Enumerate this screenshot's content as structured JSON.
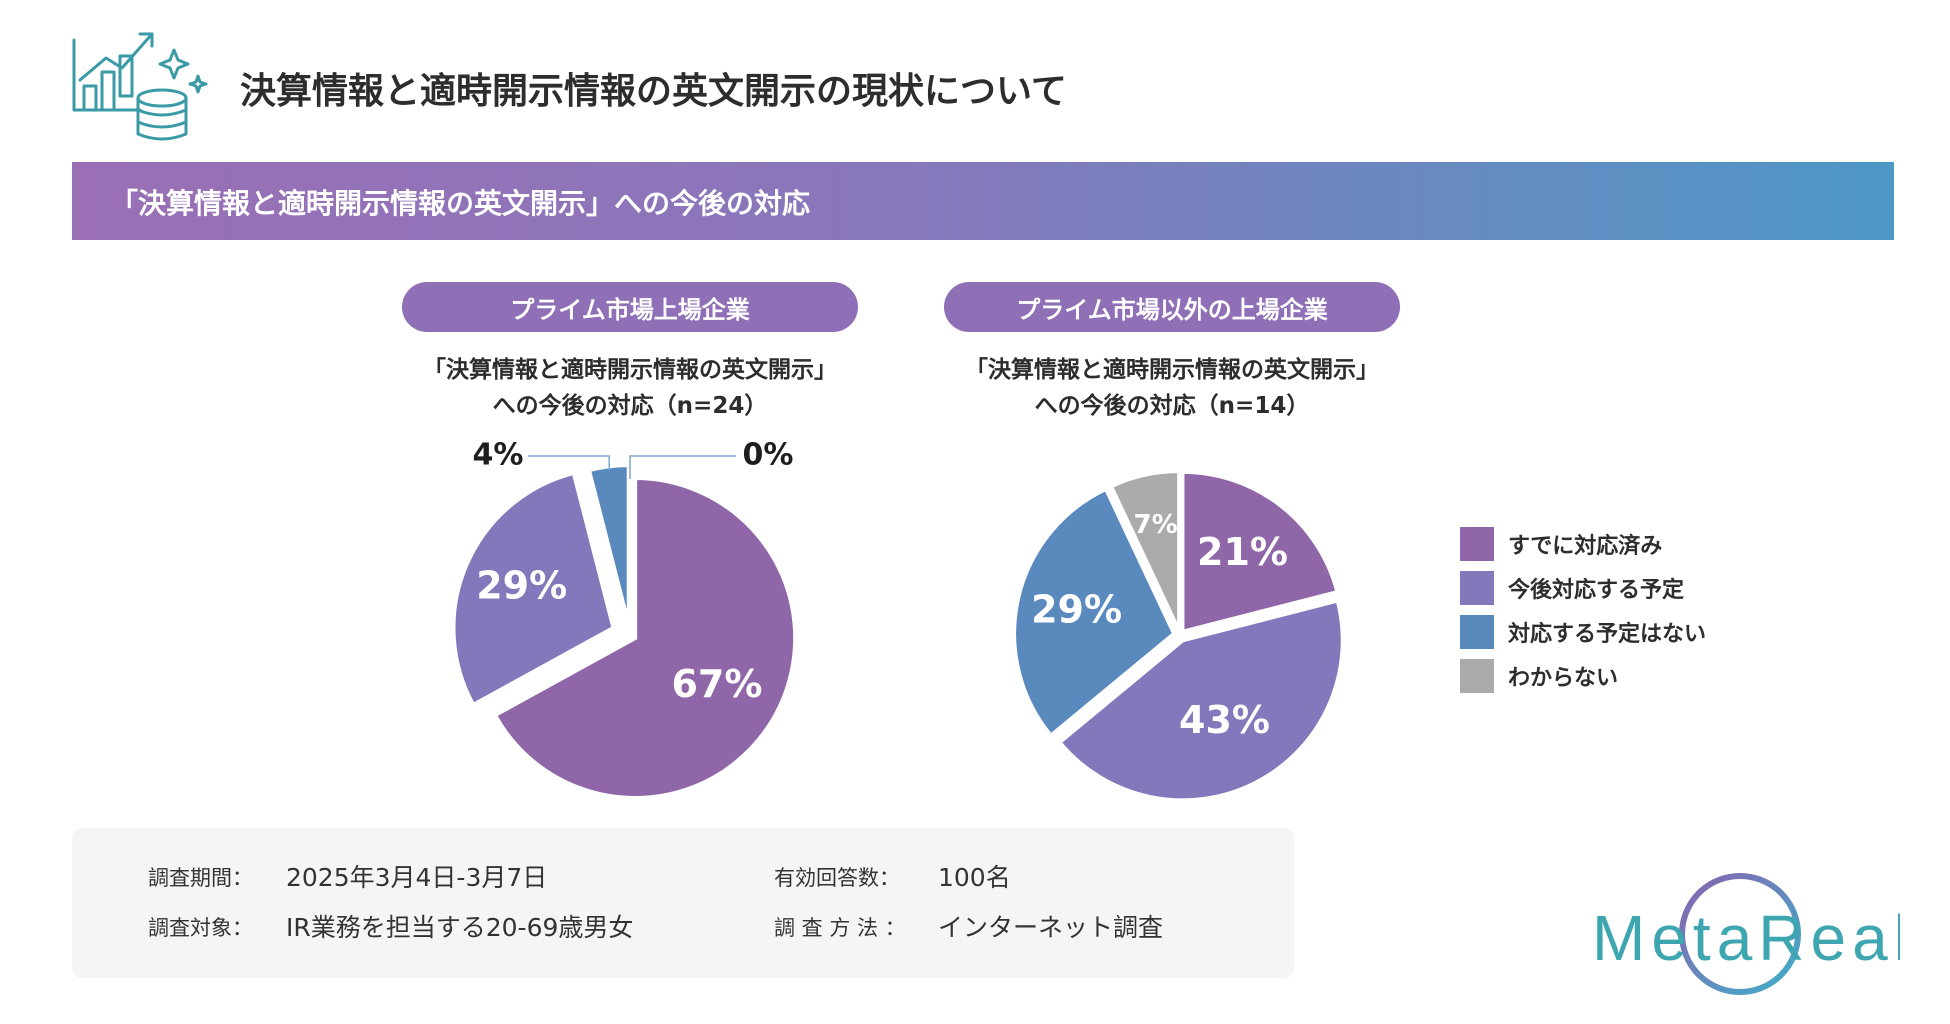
{
  "page": {
    "title": "決算情報と適時開示情報の英文開示の現状について",
    "section_title": "「決算情報と適時開示情報の英文開示」への今後の対応"
  },
  "colors": {
    "already": "#8f67a8",
    "planned": "#8278bc",
    "not_planned": "#5a89be",
    "unknown": "#ababab",
    "pill": "#8f6fb6",
    "brand": "#3da6b0"
  },
  "legend": [
    {
      "label": "すでに対応済み",
      "color": "#8f67a8"
    },
    {
      "label": "今後対応する予定",
      "color": "#8278bc"
    },
    {
      "label": "対応する予定はない",
      "color": "#5a89be"
    },
    {
      "label": "わからない",
      "color": "#ababab"
    }
  ],
  "chart_data": [
    {
      "type": "pie",
      "group": "プライム市場上場企業",
      "title_line1": "「決算情報と適時開示情報の英文開示」",
      "title_line2": "への今後の対応（n=24）",
      "slices": [
        {
          "category": "すでに対応済み",
          "value": 67,
          "label": "67%"
        },
        {
          "category": "今後対応する予定",
          "value": 29,
          "label": "29%"
        },
        {
          "category": "対応する予定はない",
          "value": 4,
          "label": "4%"
        },
        {
          "category": "わからない",
          "value": 0,
          "label": "0%"
        }
      ]
    },
    {
      "type": "pie",
      "group": "プライム市場以外の上場企業",
      "title_line1": "「決算情報と適時開示情報の英文開示」",
      "title_line2": "への今後の対応（n=14）",
      "slices": [
        {
          "category": "すでに対応済み",
          "value": 21,
          "label": "21%"
        },
        {
          "category": "今後対応する予定",
          "value": 43,
          "label": "43%"
        },
        {
          "category": "対応する予定はない",
          "value": 29,
          "label": "29%"
        },
        {
          "category": "わからない",
          "value": 7,
          "label": "7%"
        }
      ]
    }
  ],
  "survey": {
    "period_label": "調査期間：",
    "period_value": "2025年3月4日-3月7日",
    "target_label": "調査対象：",
    "target_value": "IR業務を担当する20-69歳男女",
    "responses_label": "有効回答数：",
    "responses_value": "100名",
    "method_label": "調 査 方 法 ：",
    "method_value": "インターネット調査"
  },
  "brand": {
    "name": "MetaReal",
    "icon": "chart-growth-coins-icon"
  }
}
